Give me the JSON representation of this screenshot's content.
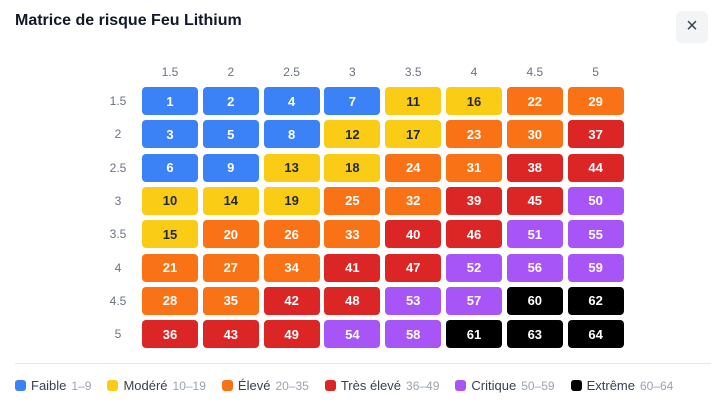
{
  "header": {
    "title": "Matrice de risque Feu Lithium",
    "close": "×"
  },
  "matrix": {
    "columns": [
      "1.5",
      "2",
      "2.5",
      "3",
      "3.5",
      "4",
      "4.5",
      "5"
    ],
    "rows": [
      "1.5",
      "2",
      "2.5",
      "3",
      "3.5",
      "4",
      "4.5",
      "5"
    ],
    "cells": [
      [
        1,
        2,
        4,
        7,
        11,
        16,
        22,
        29
      ],
      [
        3,
        5,
        8,
        12,
        17,
        23,
        30,
        37
      ],
      [
        6,
        9,
        13,
        18,
        24,
        31,
        38,
        44
      ],
      [
        10,
        14,
        19,
        25,
        32,
        39,
        45,
        50
      ],
      [
        15,
        20,
        26,
        33,
        40,
        46,
        51,
        55
      ],
      [
        21,
        27,
        34,
        41,
        47,
        52,
        56,
        59
      ],
      [
        28,
        35,
        42,
        48,
        53,
        57,
        60,
        62
      ],
      [
        36,
        43,
        49,
        54,
        58,
        61,
        63,
        64
      ]
    ]
  },
  "legend": [
    {
      "name": "Faible",
      "range": "1–9",
      "color": "#3b82f6",
      "text_color": "#ffffff"
    },
    {
      "name": "Modéré",
      "range": "10–19",
      "color": "#facc15",
      "text_color": "#1f2937"
    },
    {
      "name": "Élevé",
      "range": "20–35",
      "color": "#f97316",
      "text_color": "#ffffff"
    },
    {
      "name": "Très élevé",
      "range": "36–49",
      "color": "#dc2626",
      "text_color": "#ffffff"
    },
    {
      "name": "Critique",
      "range": "50–59",
      "color": "#a855f7",
      "text_color": "#ffffff"
    },
    {
      "name": "Extrême",
      "range": "60–64",
      "color": "#000000",
      "text_color": "#ffffff"
    }
  ]
}
